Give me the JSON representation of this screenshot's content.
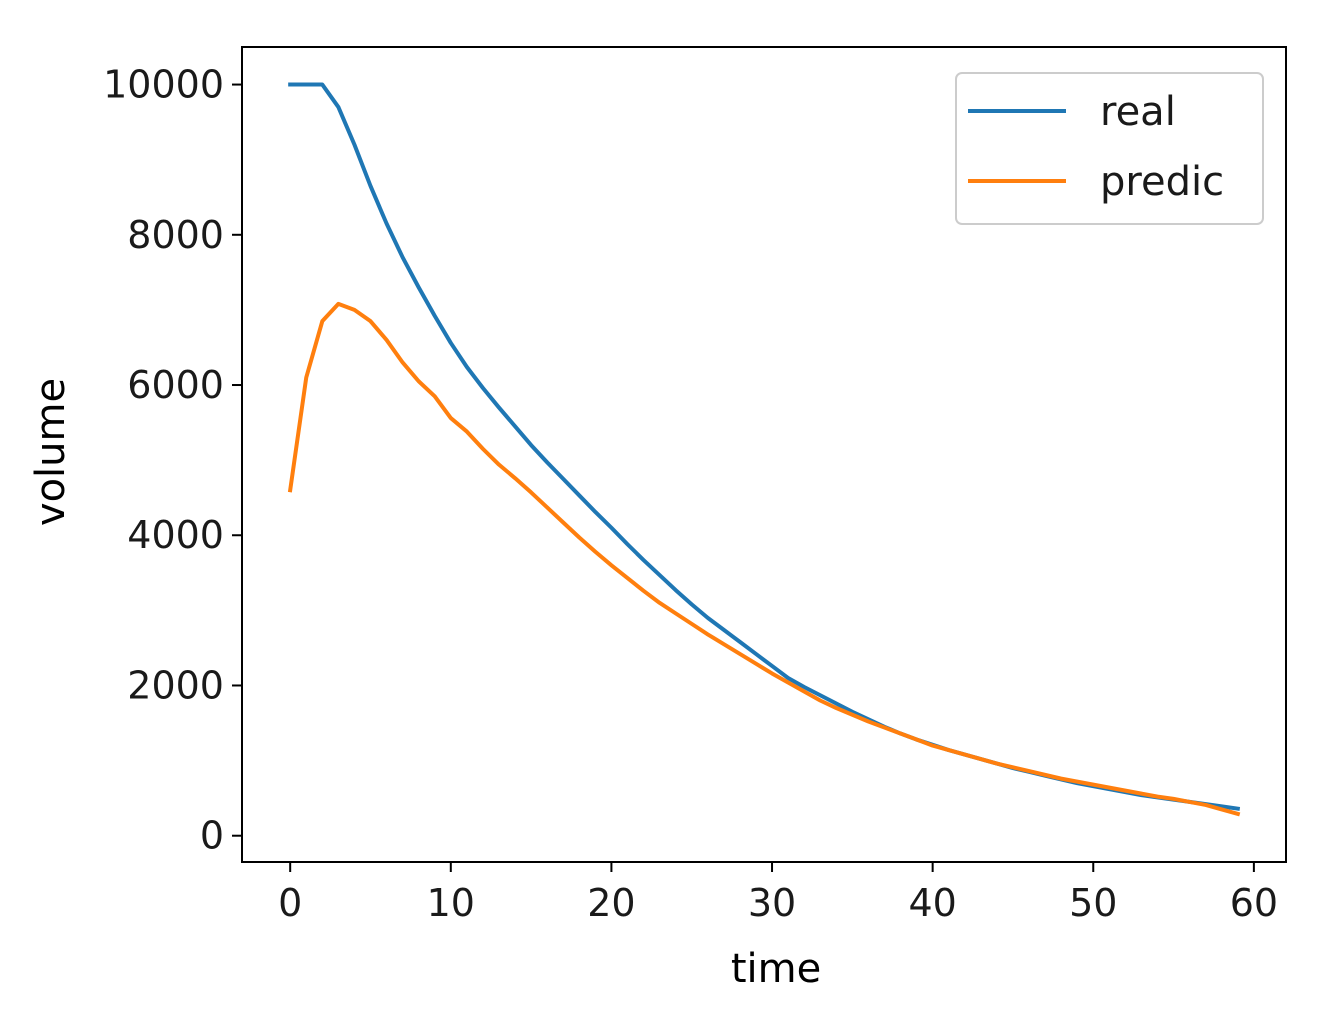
{
  "chart_data": {
    "type": "line",
    "title": "",
    "xlabel": "time",
    "ylabel": "volume",
    "xlim": [
      -3,
      62
    ],
    "ylim": [
      -350,
      10500
    ],
    "xticks": [
      0,
      10,
      20,
      30,
      40,
      50,
      60
    ],
    "yticks": [
      0,
      2000,
      4000,
      6000,
      8000,
      10000
    ],
    "xtick_labels": [
      "0",
      "10",
      "20",
      "30",
      "40",
      "50",
      "60"
    ],
    "ytick_labels": [
      "0",
      "2000",
      "4000",
      "6000",
      "8000",
      "10000"
    ],
    "grid": false,
    "legend_position": "top-right",
    "x": [
      0,
      1,
      2,
      3,
      4,
      5,
      6,
      7,
      8,
      9,
      10,
      11,
      12,
      13,
      14,
      15,
      16,
      17,
      18,
      19,
      20,
      21,
      22,
      23,
      24,
      25,
      26,
      27,
      28,
      29,
      30,
      31,
      32,
      33,
      34,
      35,
      36,
      37,
      38,
      39,
      40,
      41,
      42,
      43,
      44,
      45,
      46,
      47,
      48,
      49,
      50,
      51,
      52,
      53,
      54,
      55,
      56,
      57,
      58,
      59
    ],
    "series": [
      {
        "name": "real",
        "color": "#1f77b4",
        "values": [
          10000,
          10000,
          10000,
          9700,
          9200,
          8650,
          8150,
          7700,
          7300,
          6920,
          6560,
          6240,
          5960,
          5700,
          5450,
          5200,
          4970,
          4750,
          4530,
          4310,
          4100,
          3880,
          3670,
          3470,
          3270,
          3080,
          2900,
          2740,
          2580,
          2420,
          2260,
          2100,
          1980,
          1870,
          1760,
          1650,
          1550,
          1450,
          1360,
          1280,
          1210,
          1140,
          1080,
          1020,
          960,
          900,
          850,
          800,
          750,
          700,
          660,
          620,
          580,
          540,
          510,
          480,
          450,
          420,
          390,
          360
        ]
      },
      {
        "name": "predic",
        "color": "#ff7f0e",
        "values": [
          4600,
          6100,
          6850,
          7080,
          7000,
          6850,
          6600,
          6300,
          6050,
          5850,
          5560,
          5380,
          5150,
          4940,
          4760,
          4570,
          4370,
          4170,
          3970,
          3780,
          3600,
          3430,
          3260,
          3100,
          2960,
          2820,
          2680,
          2550,
          2420,
          2290,
          2160,
          2040,
          1920,
          1800,
          1700,
          1610,
          1520,
          1440,
          1360,
          1280,
          1200,
          1140,
          1080,
          1020,
          960,
          910,
          860,
          810,
          760,
          720,
          680,
          640,
          600,
          560,
          520,
          490,
          450,
          410,
          350,
          290
        ]
      }
    ]
  }
}
